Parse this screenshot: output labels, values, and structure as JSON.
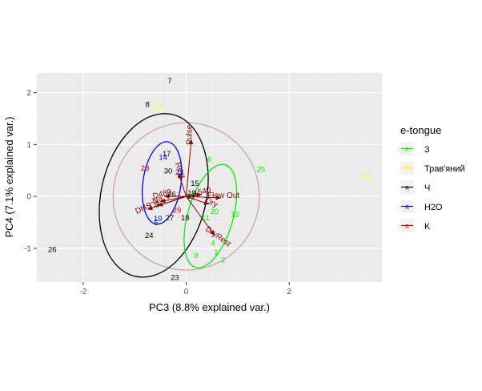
{
  "chart_data": {
    "type": "scatter",
    "title": "",
    "xlabel": "PC3 (8.8% explained var.)",
    "ylabel": "PC4 (7.1% explained var.)",
    "xlim": [
      -2.9,
      3.8
    ],
    "ylim": [
      -1.65,
      2.38
    ],
    "x_ticks": [
      -2,
      0,
      2
    ],
    "y_ticks": [
      -1,
      0,
      1,
      2
    ],
    "grid": true,
    "legend": {
      "title": "e-tongue",
      "position": "right",
      "entries": [
        {
          "name": "З",
          "color": "#00ee00"
        },
        {
          "name": "Трав'яний",
          "color": "#ffff00"
        },
        {
          "name": "Ч",
          "color": "#000000"
        },
        {
          "name": "H2O",
          "color": "#0000ff"
        },
        {
          "name": "K",
          "color": "#cc0000"
        }
      ]
    },
    "series": [
      {
        "name": "З",
        "color": "#00ee00",
        "points": [
          {
            "label": "1",
            "x": 0.58,
            "y": -1.07
          },
          {
            "label": "2",
            "x": 0.72,
            "y": -1.22
          },
          {
            "label": "4",
            "x": 0.52,
            "y": -0.89
          },
          {
            "label": "6",
            "x": 0.45,
            "y": 0.72
          },
          {
            "label": "9",
            "x": 0.19,
            "y": -1.13
          },
          {
            "label": "11",
            "x": 0.38,
            "y": -0.41
          },
          {
            "label": "12",
            "x": 0.95,
            "y": -0.34
          },
          {
            "label": "20",
            "x": 0.55,
            "y": -0.28
          },
          {
            "label": "25",
            "x": 1.45,
            "y": 0.53
          }
        ]
      },
      {
        "name": "Трав'яний",
        "color": "#ffff00",
        "points": [
          {
            "label": "10",
            "x": -0.55,
            "y": 1.73
          },
          {
            "label": "21",
            "x": 3.52,
            "y": 0.39
          }
        ]
      },
      {
        "name": "Ч",
        "color": "#000000",
        "points": [
          {
            "label": "3",
            "x": -0.56,
            "y": -0.15
          },
          {
            "label": "7",
            "x": -0.32,
            "y": 2.23
          },
          {
            "label": "8",
            "x": -0.75,
            "y": 1.78
          },
          {
            "label": "13",
            "x": 0.08,
            "y": 0.01
          },
          {
            "label": "15",
            "x": 0.17,
            "y": 0.26
          },
          {
            "label": "16",
            "x": -0.28,
            "y": 0.05
          },
          {
            "label": "17",
            "x": -0.38,
            "y": 0.83
          },
          {
            "label": "18",
            "x": -0.02,
            "y": -0.41
          },
          {
            "label": "19",
            "x": 0.11,
            "y": 0.07
          },
          {
            "label": "23",
            "x": -0.22,
            "y": -1.56
          },
          {
            "label": "24",
            "x": -0.72,
            "y": -0.75
          },
          {
            "label": "26",
            "x": -2.6,
            "y": -1.02
          },
          {
            "label": "27",
            "x": -0.32,
            "y": -0.41
          },
          {
            "label": "30",
            "x": -0.35,
            "y": 0.5
          }
        ]
      },
      {
        "name": "H2O",
        "color": "#0000ff",
        "points": [
          {
            "label": "5",
            "x": -0.58,
            "y": -0.5
          },
          {
            "label": "14",
            "x": -0.45,
            "y": 0.76
          },
          {
            "label": "19",
            "x": -0.55,
            "y": -0.42
          },
          {
            "label": "22",
            "x": -0.13,
            "y": 0.47
          }
        ]
      },
      {
        "name": "K",
        "color": "#cc0000",
        "points": [
          {
            "label": "28",
            "x": -0.8,
            "y": 0.55
          },
          {
            "label": "29",
            "x": -0.18,
            "y": -0.26
          }
        ]
      }
    ],
    "loadings": [
      {
        "label": "Pulse",
        "x": 0.1,
        "y": 1.1,
        "rotate": -90
      },
      {
        "label": "Flow Out",
        "x": 0.67,
        "y": -0.03,
        "rotate": 0
      },
      {
        "label": "DryRest",
        "x": 0.55,
        "y": -0.75,
        "rotate": 35
      },
      {
        "label": "Dry",
        "x": 0.44,
        "y": -0.15,
        "rotate": 25
      },
      {
        "label": "1540",
        "x": 0.3,
        "y": 0.04,
        "rotate": -15
      },
      {
        "label": "Rest",
        "x": -0.15,
        "y": 0.45,
        "rotate": 70
      },
      {
        "label": "D480",
        "x": -0.42,
        "y": 0.0,
        "rotate": -15
      },
      {
        "label": "DHS",
        "x": -0.75,
        "y": -0.25,
        "rotate": -25
      },
      {
        "label": "Co",
        "x": -0.55,
        "y": -0.18,
        "rotate": -30
      },
      {
        "label": "Na",
        "x": -0.5,
        "y": -0.1,
        "rotate": -20
      }
    ],
    "ellipses": [
      {
        "series": "Ч",
        "color": "#000000",
        "cx": -0.63,
        "cy": 0.02,
        "rx": 1.02,
        "ry": 1.6,
        "angle_deg": 13
      },
      {
        "series": "H2O",
        "color": "#0000ff",
        "cx": -0.47,
        "cy": 0.26,
        "rx": 0.37,
        "ry": 0.8,
        "angle_deg": 8
      },
      {
        "series": "З",
        "color": "#00ee00",
        "cx": 0.47,
        "cy": -0.38,
        "rx": 0.44,
        "ry": 1.03,
        "angle_deg": 16
      }
    ],
    "circle": {
      "cx": 0.0,
      "cy": 0.0,
      "r": 1.42,
      "color": "#c8a0a0"
    }
  }
}
